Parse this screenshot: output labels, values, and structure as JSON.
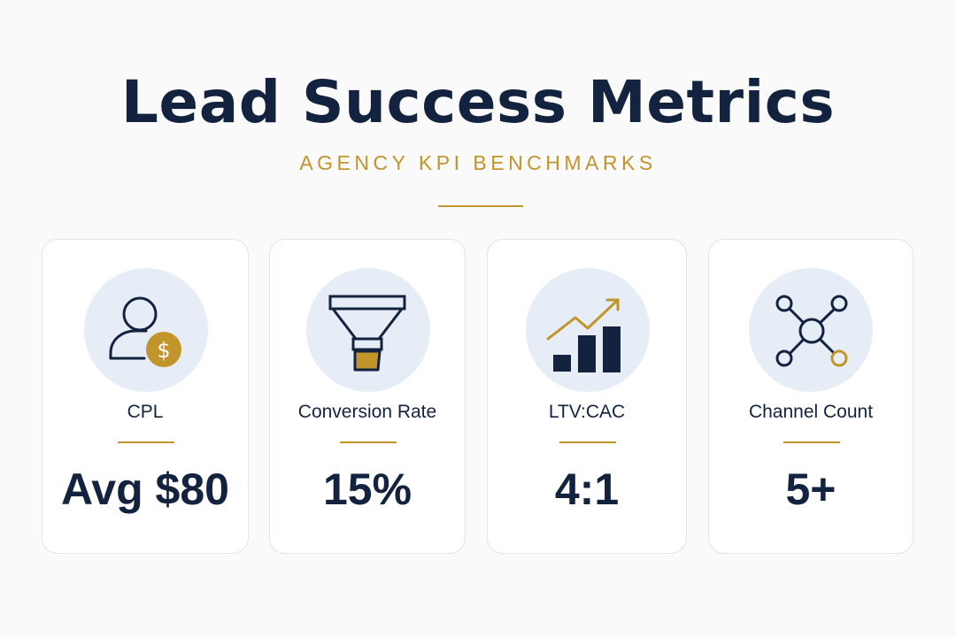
{
  "header": {
    "title": "Lead Success Metrics",
    "subtitle": "AGENCY KPI BENCHMARKS"
  },
  "colors": {
    "navy": "#13233f",
    "gold": "#c2952c",
    "icon_bg": "#e6edf6"
  },
  "cards": [
    {
      "icon": "user-dollar-icon",
      "label": "CPL",
      "value": "Avg $80"
    },
    {
      "icon": "funnel-icon",
      "label": "Conversion Rate",
      "value": "15%"
    },
    {
      "icon": "growth-chart-icon",
      "label": "LTV:CAC",
      "value": "4:1"
    },
    {
      "icon": "network-icon",
      "label": "Channel Count",
      "value": "5+"
    }
  ]
}
